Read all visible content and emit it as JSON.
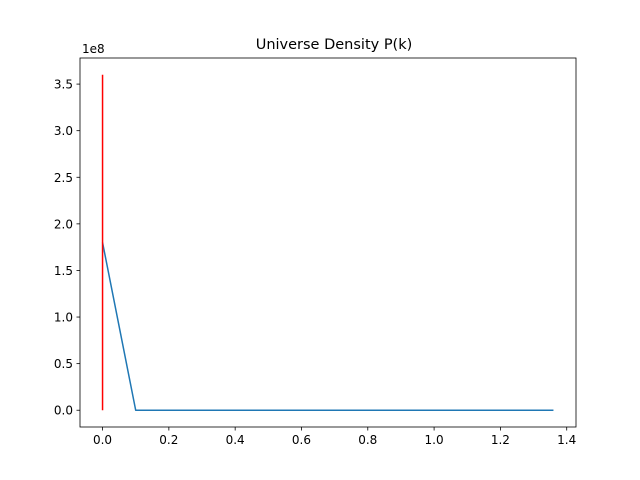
{
  "chart_data": {
    "type": "line",
    "title": "Universe Density P(k)",
    "xlabel": "",
    "ylabel": "",
    "y_offset_label": "1e8",
    "xlim": [
      -0.068,
      1.428
    ],
    "ylim": [
      -0.18,
      3.78
    ],
    "y_scale_factor": 100000000,
    "x_ticks": [
      0.0,
      0.2,
      0.4,
      0.6,
      0.8,
      1.0,
      1.2,
      1.4
    ],
    "x_tick_labels": [
      "0.0",
      "0.2",
      "0.4",
      "0.6",
      "0.8",
      "1.0",
      "1.2",
      "1.4"
    ],
    "y_ticks": [
      0.0,
      0.5,
      1.0,
      1.5,
      2.0,
      2.5,
      3.0,
      3.5
    ],
    "y_tick_labels": [
      "0.0",
      "0.5",
      "1.0",
      "1.5",
      "2.0",
      "2.5",
      "3.0",
      "3.5"
    ],
    "grid": false,
    "series": [
      {
        "color": "#1f77b4",
        "kind": "line",
        "x": [
          0.0,
          0.1,
          0.2,
          0.3,
          0.4,
          0.5,
          0.6,
          0.7,
          0.8,
          0.9,
          1.0,
          1.1,
          1.2,
          1.3,
          1.36
        ],
        "y": [
          1.8,
          0.0,
          0.0,
          0.0,
          0.0,
          0.0,
          0.0,
          0.0,
          0.0,
          0.0,
          0.0,
          0.0,
          0.0,
          0.0,
          0.0
        ]
      },
      {
        "color": "#ff0000",
        "kind": "vline",
        "x": [
          0.0,
          0.0
        ],
        "y": [
          0.0,
          3.6
        ]
      }
    ]
  }
}
